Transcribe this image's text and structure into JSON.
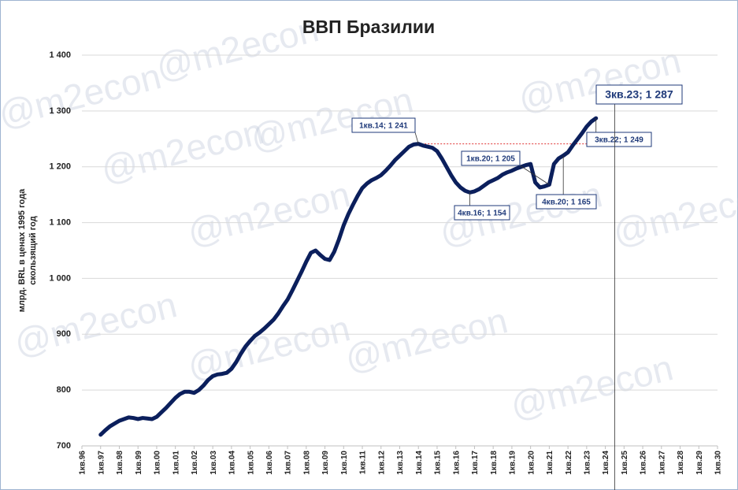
{
  "chart_data": {
    "type": "line",
    "title": "ВВП Бразилии",
    "y_label": [
      "млрд. BRL в ценах 1995 года",
      "скользящий год"
    ],
    "watermark": "@m2econ",
    "color": "#0b1f5c",
    "grid": true,
    "ylim": [
      700,
      1400
    ],
    "yticks": [
      700,
      800,
      900,
      {
        "value": 1000,
        "label": "1 000"
      },
      {
        "value": 1100,
        "label": "1 100"
      },
      {
        "value": 1200,
        "label": "1 200"
      },
      {
        "value": 1300,
        "label": "1 300"
      },
      {
        "value": 1400,
        "label": "1 400"
      }
    ],
    "categories": [
      "1кв.96",
      null,
      null,
      null,
      "1кв.97",
      null,
      null,
      null,
      "1кв.98",
      null,
      null,
      null,
      "1кв.99",
      null,
      null,
      null,
      "1кв.00",
      null,
      null,
      null,
      "1кв.01",
      null,
      null,
      null,
      "1кв.02",
      null,
      null,
      null,
      "1кв.03",
      null,
      null,
      null,
      "1кв.04",
      null,
      null,
      null,
      "1кв.05",
      null,
      null,
      null,
      "1кв.06",
      null,
      null,
      null,
      "1кв.07",
      null,
      null,
      null,
      "1кв.08",
      null,
      null,
      null,
      "1кв.09",
      null,
      null,
      null,
      "1кв.10",
      null,
      null,
      null,
      "1кв.11",
      null,
      null,
      null,
      "1кв.12",
      null,
      null,
      null,
      "1кв.13",
      null,
      null,
      null,
      "1кв.14",
      null,
      null,
      null,
      "1кв.15",
      null,
      null,
      null,
      "1кв.16",
      null,
      null,
      null,
      "1кв.17",
      null,
      null,
      null,
      "1кв.18",
      null,
      null,
      null,
      "1кв.19",
      null,
      null,
      null,
      "1кв.20",
      null,
      null,
      null,
      "1кв.21",
      null,
      null,
      null,
      "1кв.22",
      null,
      null,
      null,
      "1кв.23",
      null,
      null,
      null,
      "1кв.24",
      null,
      null,
      null,
      "1кв.25",
      null,
      null,
      null,
      "1кв.26",
      null,
      null,
      null,
      "1кв.27",
      null,
      null,
      null,
      "1кв.28",
      null,
      null,
      null,
      "1кв.29",
      null,
      null,
      null,
      "1кв.30"
    ],
    "values": [
      null,
      null,
      null,
      null,
      720,
      728,
      735,
      740,
      745,
      748,
      751,
      750,
      748,
      750,
      749,
      748,
      752,
      760,
      768,
      777,
      786,
      793,
      797,
      797,
      795,
      800,
      808,
      818,
      825,
      828,
      829,
      831,
      838,
      850,
      865,
      878,
      888,
      897,
      903,
      910,
      918,
      926,
      937,
      950,
      962,
      978,
      995,
      1012,
      1030,
      1046,
      1050,
      1042,
      1035,
      1033,
      1048,
      1070,
      1095,
      1115,
      1132,
      1148,
      1162,
      1170,
      1176,
      1180,
      1185,
      1193,
      1202,
      1212,
      1220,
      1228,
      1236,
      1240,
      1241,
      1238,
      1236,
      1234,
      1228,
      1215,
      1200,
      1185,
      1172,
      1163,
      1157,
      1154,
      1156,
      1160,
      1166,
      1172,
      1176,
      1180,
      1186,
      1190,
      1193,
      1197,
      1200,
      1203,
      1205,
      1172,
      1163,
      1165,
      1168,
      1205,
      1215,
      1220,
      1226,
      1238,
      1249,
      1260,
      1272,
      1281,
      1287,
      null,
      null,
      null,
      null,
      null,
      null,
      null,
      null,
      null,
      null,
      null,
      null,
      null,
      null,
      null,
      null,
      null,
      null,
      null,
      null,
      null,
      null,
      null,
      null,
      null,
      null
    ],
    "annotations": [
      "1кв.14; 1 241",
      "4кв.16; 1 154",
      "1кв.20; 1 205",
      "4кв.20; 1 165",
      "3кв.22; 1 249",
      "3кв.23; 1 287"
    ]
  }
}
